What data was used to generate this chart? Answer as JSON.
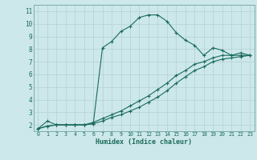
{
  "xlabel": "Humidex (Indice chaleur)",
  "xlim": [
    -0.5,
    23.5
  ],
  "ylim": [
    1.5,
    11.5
  ],
  "xticks": [
    0,
    1,
    2,
    3,
    4,
    5,
    6,
    7,
    8,
    9,
    10,
    11,
    12,
    13,
    14,
    15,
    16,
    17,
    18,
    19,
    20,
    21,
    22,
    23
  ],
  "yticks": [
    2,
    3,
    4,
    5,
    6,
    7,
    8,
    9,
    10,
    11
  ],
  "background_color": "#cde8ea",
  "grid_color": "#b8d4d6",
  "line_color": "#1a6b5a",
  "curve1_x": [
    0,
    1,
    2,
    3,
    4,
    5,
    6,
    7,
    8,
    9,
    10,
    11,
    12,
    13,
    14,
    15,
    16,
    17,
    18,
    19,
    20,
    21,
    22,
    23
  ],
  "curve1_y": [
    1.7,
    2.3,
    2.0,
    2.0,
    2.0,
    2.0,
    2.1,
    8.1,
    8.6,
    9.4,
    9.8,
    10.5,
    10.7,
    10.7,
    10.2,
    9.3,
    8.7,
    8.3,
    7.5,
    8.1,
    7.9,
    7.5,
    7.5,
    7.5
  ],
  "curve2_x": [
    0,
    1,
    2,
    3,
    4,
    5,
    6,
    7,
    8,
    9,
    10,
    11,
    12,
    13,
    14,
    15,
    16,
    17,
    18,
    19,
    20,
    21,
    22,
    23
  ],
  "curve2_y": [
    1.7,
    1.9,
    2.0,
    2.0,
    2.0,
    2.0,
    2.2,
    2.5,
    2.8,
    3.1,
    3.5,
    3.9,
    4.3,
    4.8,
    5.3,
    5.9,
    6.3,
    6.8,
    7.0,
    7.3,
    7.5,
    7.5,
    7.7,
    7.5
  ],
  "curve3_x": [
    0,
    1,
    2,
    3,
    4,
    5,
    6,
    7,
    8,
    9,
    10,
    11,
    12,
    13,
    14,
    15,
    16,
    17,
    18,
    19,
    20,
    21,
    22,
    23
  ],
  "curve3_y": [
    1.7,
    1.9,
    2.0,
    2.0,
    2.0,
    2.0,
    2.1,
    2.3,
    2.6,
    2.8,
    3.1,
    3.4,
    3.8,
    4.2,
    4.7,
    5.3,
    5.8,
    6.3,
    6.6,
    7.0,
    7.2,
    7.3,
    7.4,
    7.5
  ]
}
